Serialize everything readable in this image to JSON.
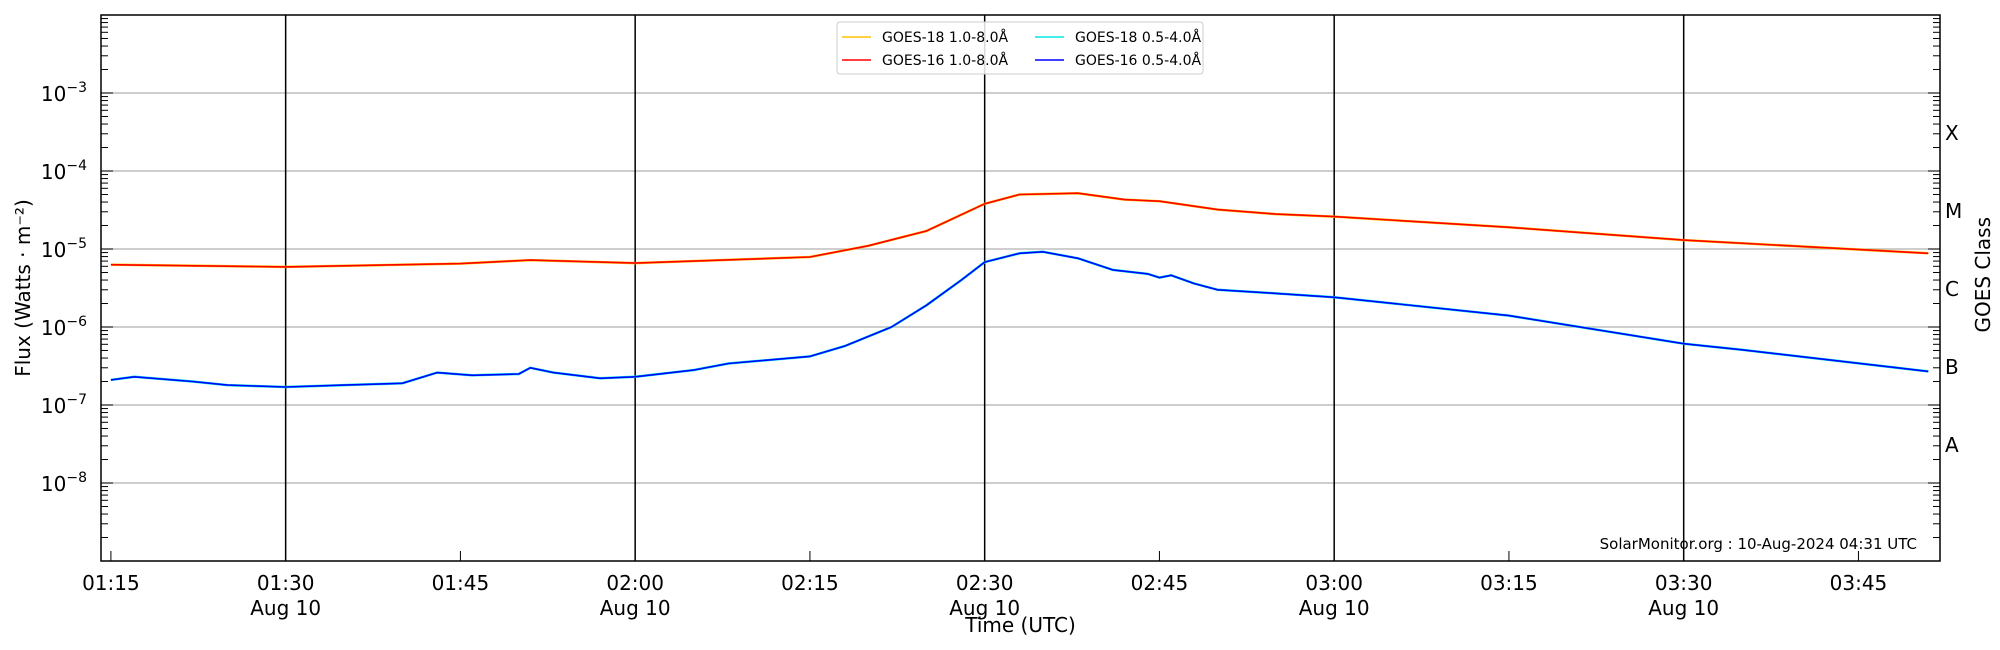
{
  "chart_data": {
    "type": "line",
    "xlabel": "Time (UTC)",
    "ylabel": "Flux (Watts · m⁻²)",
    "ylabel_right": "GOES Class",
    "yscale": "log",
    "ylim": [
      1e-09,
      0.01
    ],
    "xlim": [
      "01:14:09",
      "03:52:00"
    ],
    "grid": "horizontal gray at decades; vertical black at 30-minute marks",
    "legend_position": "top-center",
    "yticks": [
      {
        "value": 0.001,
        "mant": "10",
        "exp": "−3"
      },
      {
        "value": 0.0001,
        "mant": "10",
        "exp": "−4"
      },
      {
        "value": 1e-05,
        "mant": "10",
        "exp": "−5"
      },
      {
        "value": 1e-06,
        "mant": "10",
        "exp": "−6"
      },
      {
        "value": 1e-07,
        "mant": "10",
        "exp": "−7"
      },
      {
        "value": 1e-08,
        "mant": "10",
        "exp": "−8"
      }
    ],
    "xticks": [
      {
        "time": "01:15",
        "label": "01:15",
        "date": ""
      },
      {
        "time": "01:30",
        "label": "01:30",
        "date": "Aug 10"
      },
      {
        "time": "01:45",
        "label": "01:45",
        "date": ""
      },
      {
        "time": "02:00",
        "label": "02:00",
        "date": "Aug 10"
      },
      {
        "time": "02:15",
        "label": "02:15",
        "date": ""
      },
      {
        "time": "02:30",
        "label": "02:30",
        "date": "Aug 10"
      },
      {
        "time": "02:45",
        "label": "02:45",
        "date": ""
      },
      {
        "time": "03:00",
        "label": "03:00",
        "date": "Aug 10"
      },
      {
        "time": "03:15",
        "label": "03:15",
        "date": ""
      },
      {
        "time": "03:30",
        "label": "03:30",
        "date": "Aug 10"
      },
      {
        "time": "03:45",
        "label": "03:45",
        "date": ""
      }
    ],
    "goes_classes": [
      {
        "label": "A",
        "value": 3.16e-08
      },
      {
        "label": "B",
        "value": 3.16e-07
      },
      {
        "label": "C",
        "value": 3.16e-06
      },
      {
        "label": "M",
        "value": 3.16e-05
      },
      {
        "label": "X",
        "value": 0.000316
      }
    ],
    "series": [
      {
        "name": "GOES-18 1.0-8.0Å",
        "color": "#ffc000",
        "times": [
          "01:15",
          "01:30",
          "01:45",
          "01:51",
          "02:00",
          "02:15",
          "02:20",
          "02:25",
          "02:30",
          "02:33",
          "02:38",
          "02:42",
          "02:45",
          "02:50",
          "02:55",
          "03:00",
          "03:15",
          "03:30",
          "03:51"
        ],
        "values": [
          6.3e-06,
          5.9e-06,
          6.5e-06,
          7.2e-06,
          6.6e-06,
          7.9e-06,
          1.1e-05,
          1.7e-05,
          3.8e-05,
          5e-05,
          5.2e-05,
          4.3e-05,
          4.1e-05,
          3.2e-05,
          2.8e-05,
          2.6e-05,
          1.9e-05,
          1.3e-05,
          8.8e-06
        ]
      },
      {
        "name": "GOES-18 0.5-4.0Å",
        "color": "#00e5e5",
        "times": [
          "01:15",
          "01:17",
          "01:22",
          "01:25",
          "01:30",
          "01:35",
          "01:40",
          "01:43",
          "01:46",
          "01:50",
          "01:51",
          "01:53",
          "01:57",
          "02:00",
          "02:05",
          "02:08",
          "02:15",
          "02:18",
          "02:22",
          "02:25",
          "02:28",
          "02:30",
          "02:33",
          "02:35",
          "02:38",
          "02:41",
          "02:44",
          "02:45",
          "02:46",
          "02:48",
          "02:50",
          "02:55",
          "03:00",
          "03:15",
          "03:30",
          "03:35",
          "03:51"
        ],
        "values": [
          2.1e-07,
          2.3e-07,
          2e-07,
          1.8e-07,
          1.7e-07,
          1.8e-07,
          1.9e-07,
          2.6e-07,
          2.4e-07,
          2.5e-07,
          3e-07,
          2.6e-07,
          2.2e-07,
          2.3e-07,
          2.8e-07,
          3.4e-07,
          4.2e-07,
          5.7e-07,
          1e-06,
          1.9e-06,
          4e-06,
          6.8e-06,
          8.8e-06,
          9.2e-06,
          7.6e-06,
          5.4e-06,
          4.8e-06,
          4.3e-06,
          4.6e-06,
          3.6e-06,
          3e-06,
          2.7e-06,
          2.4e-06,
          1.4e-06,
          6.1e-07,
          5.1e-07,
          2.7e-07
        ]
      },
      {
        "name": "GOES-16 1.0-8.0Å",
        "color": "#ff0000",
        "times": [
          "01:15",
          "01:30",
          "01:45",
          "01:51",
          "02:00",
          "02:15",
          "02:20",
          "02:25",
          "02:30",
          "02:33",
          "02:38",
          "02:42",
          "02:45",
          "02:50",
          "02:55",
          "03:00",
          "03:15",
          "03:30",
          "03:51"
        ],
        "values": [
          6.3e-06,
          5.9e-06,
          6.5e-06,
          7.2e-06,
          6.6e-06,
          7.9e-06,
          1.1e-05,
          1.7e-05,
          3.8e-05,
          5e-05,
          5.2e-05,
          4.3e-05,
          4.1e-05,
          3.2e-05,
          2.8e-05,
          2.6e-05,
          1.9e-05,
          1.3e-05,
          8.8e-06
        ]
      },
      {
        "name": "GOES-16 0.5-4.0Å",
        "color": "#0000ff",
        "times": [
          "01:15",
          "01:17",
          "01:22",
          "01:25",
          "01:30",
          "01:35",
          "01:40",
          "01:43",
          "01:46",
          "01:50",
          "01:51",
          "01:53",
          "01:57",
          "02:00",
          "02:05",
          "02:08",
          "02:15",
          "02:18",
          "02:22",
          "02:25",
          "02:28",
          "02:30",
          "02:33",
          "02:35",
          "02:38",
          "02:41",
          "02:44",
          "02:45",
          "02:46",
          "02:48",
          "02:50",
          "02:55",
          "03:00",
          "03:15",
          "03:30",
          "03:35",
          "03:51"
        ],
        "values": [
          2.1e-07,
          2.3e-07,
          2e-07,
          1.8e-07,
          1.7e-07,
          1.8e-07,
          1.9e-07,
          2.6e-07,
          2.4e-07,
          2.5e-07,
          3e-07,
          2.6e-07,
          2.2e-07,
          2.3e-07,
          2.8e-07,
          3.4e-07,
          4.2e-07,
          5.7e-07,
          1e-06,
          1.9e-06,
          4e-06,
          6.8e-06,
          8.8e-06,
          9.2e-06,
          7.6e-06,
          5.4e-06,
          4.8e-06,
          4.3e-06,
          4.6e-06,
          3.6e-06,
          3e-06,
          2.7e-06,
          2.4e-06,
          1.4e-06,
          6.1e-07,
          5.1e-07,
          2.7e-07
        ]
      }
    ],
    "annotation": "SolarMonitor.org : 10-Aug-2024 04:31 UTC"
  }
}
